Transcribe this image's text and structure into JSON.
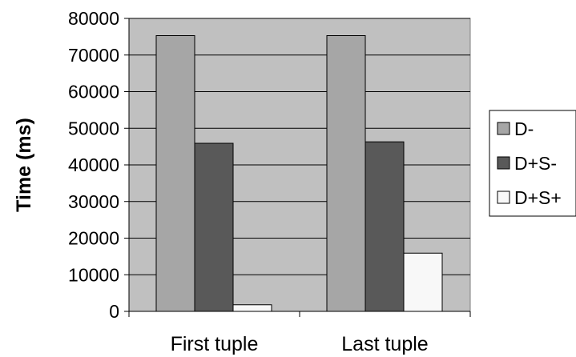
{
  "chart_data": {
    "type": "bar",
    "categories": [
      "First tuple",
      "Last tuple"
    ],
    "series": [
      {
        "name": "D-",
        "values": [
          75300,
          75300
        ],
        "color": "#a6a6a6"
      },
      {
        "name": "D+S-",
        "values": [
          45900,
          46300
        ],
        "color": "#595959"
      },
      {
        "name": "D+S+",
        "values": [
          1800,
          15900
        ],
        "color": "#f8f8f8"
      }
    ],
    "title": "",
    "xlabel": "",
    "ylabel": "Time (ms)",
    "ylim": [
      0,
      80000
    ],
    "yticks": [
      0,
      10000,
      20000,
      30000,
      40000,
      50000,
      60000,
      70000,
      80000
    ],
    "ytick_labels": [
      "0",
      "10000",
      "20000",
      "30000",
      "40000",
      "50000",
      "60000",
      "70000",
      "80000"
    ],
    "grid": true,
    "plot_background": "#c0c0c0",
    "legend_position": "right"
  }
}
